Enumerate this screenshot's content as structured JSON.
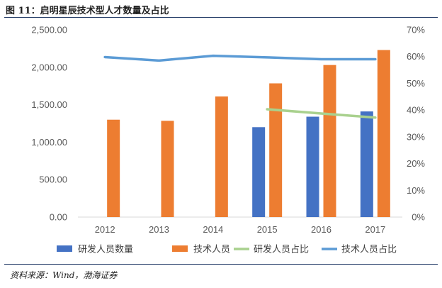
{
  "figure": {
    "title": "图 11：启明星辰技术型人才数量及占比",
    "source": "资料来源：Wind，渤海证券"
  },
  "chart_data": {
    "type": "bar",
    "categories": [
      "2012",
      "2013",
      "2014",
      "2015",
      "2016",
      "2017"
    ],
    "series": [
      {
        "name": "研发人员数量",
        "type": "bar",
        "axis": "left",
        "color": "#4472c4",
        "values": [
          null,
          null,
          null,
          1200,
          1340,
          1410
        ]
      },
      {
        "name": "技术人员",
        "type": "bar",
        "axis": "left",
        "color": "#ed7d31",
        "values": [
          1300,
          1285,
          1610,
          1785,
          2030,
          2230
        ]
      },
      {
        "name": "研发人员占比",
        "type": "line",
        "axis": "right",
        "color": "#a9d18e",
        "values": [
          null,
          null,
          null,
          0.403,
          0.387,
          0.372
        ]
      },
      {
        "name": "技术人员占比",
        "type": "line",
        "axis": "right",
        "color": "#5b9bd5",
        "values": [
          0.598,
          0.585,
          0.603,
          0.597,
          0.59,
          0.59
        ]
      }
    ],
    "y_left": {
      "min": 0,
      "max": 2500,
      "ticks": [
        "0.00",
        "500.00",
        "1,000.00",
        "1,500.00",
        "2,000.00",
        "2,500.00"
      ]
    },
    "y_right": {
      "min": 0,
      "max": 0.7,
      "ticks": [
        "0%",
        "10%",
        "20%",
        "30%",
        "40%",
        "50%",
        "60%",
        "70%"
      ]
    },
    "grid": false,
    "legend": "bottom"
  }
}
